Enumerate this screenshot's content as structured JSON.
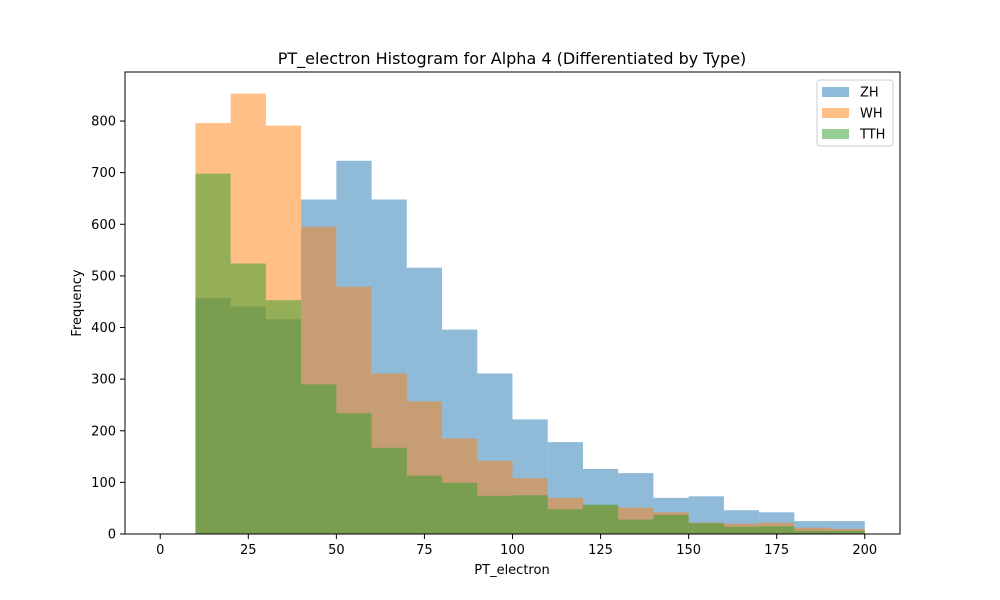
{
  "chart_data": {
    "type": "bar",
    "title": "PT_electron Histogram for Alpha 4 (Differentiated by Type)",
    "xlabel": "PT_electron",
    "ylabel": "Frequency",
    "xlim": [
      -10,
      210
    ],
    "ylim": [
      0,
      895
    ],
    "xticks": [
      0,
      25,
      50,
      75,
      100,
      125,
      150,
      175,
      200
    ],
    "yticks": [
      0,
      100,
      200,
      300,
      400,
      500,
      600,
      700,
      800
    ],
    "bin_edges": [
      10,
      20,
      30,
      40,
      50,
      60,
      70,
      80,
      90,
      100,
      110,
      120,
      130,
      140,
      150,
      160,
      170,
      180,
      190,
      200
    ],
    "legend_position": "upper right",
    "grid": false,
    "series": [
      {
        "name": "ZH",
        "color": "#1f77b4",
        "alpha": 0.5,
        "values": [
          457,
          441,
          416,
          648,
          723,
          648,
          516,
          396,
          311,
          222,
          178,
          126,
          118,
          70,
          73,
          46,
          42,
          25,
          25
        ]
      },
      {
        "name": "WH",
        "color": "#ff7f0e",
        "alpha": 0.5,
        "values": [
          796,
          853,
          791,
          595,
          479,
          311,
          257,
          185,
          142,
          108,
          70,
          56,
          51,
          42,
          22,
          20,
          22,
          12,
          10
        ]
      },
      {
        "name": "TTH",
        "color": "#2ca02c",
        "alpha": 0.5,
        "values": [
          698,
          524,
          453,
          290,
          234,
          167,
          113,
          99,
          74,
          75,
          48,
          57,
          28,
          37,
          21,
          14,
          15,
          6,
          6
        ]
      }
    ]
  }
}
